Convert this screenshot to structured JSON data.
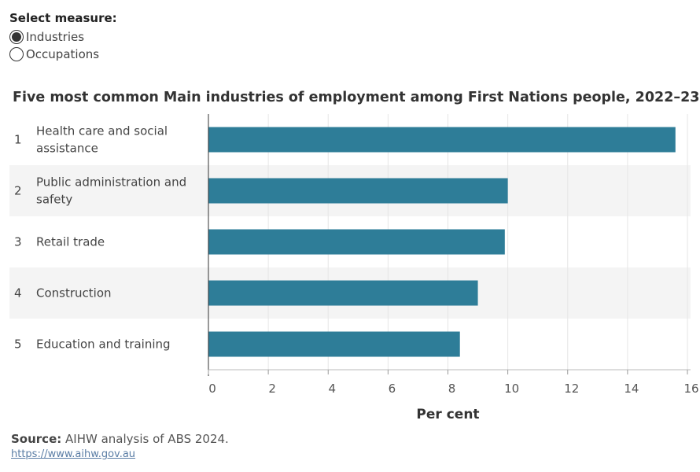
{
  "controls": {
    "label": "Select measure:",
    "options": [
      {
        "label": "Industries",
        "selected": true
      },
      {
        "label": "Occupations",
        "selected": false
      }
    ]
  },
  "chart_data": {
    "type": "bar",
    "orientation": "horizontal",
    "title": "Five most common Main industries of employment among First Nations people, 2022–23",
    "xlabel": "Per cent",
    "ylabel": "",
    "xlim": [
      0,
      16
    ],
    "xticks": [
      "0",
      "2",
      "4",
      "6",
      "8",
      "10",
      "12",
      "14",
      "16"
    ],
    "categories": [
      "Health care and social assistance",
      "Public administration and safety",
      "Retail trade",
      "Construction",
      "Education and training"
    ],
    "category_lines": [
      [
        "Health care and social",
        "assistance"
      ],
      [
        "Public administration and",
        "safety"
      ],
      [
        "Retail trade"
      ],
      [
        "Construction"
      ],
      [
        "Education and training"
      ]
    ],
    "ranks": [
      "1",
      "2",
      "3",
      "4",
      "5"
    ],
    "values": [
      15.6,
      10.0,
      9.9,
      9.0,
      8.4
    ],
    "bar_color": "#2e7d98",
    "band_color": "#f4f4f4",
    "grid": true
  },
  "footer": {
    "source_label": "Source:",
    "source_text": " AIHW analysis of ABS 2024.",
    "link": "https://www.aihw.gov.au"
  }
}
